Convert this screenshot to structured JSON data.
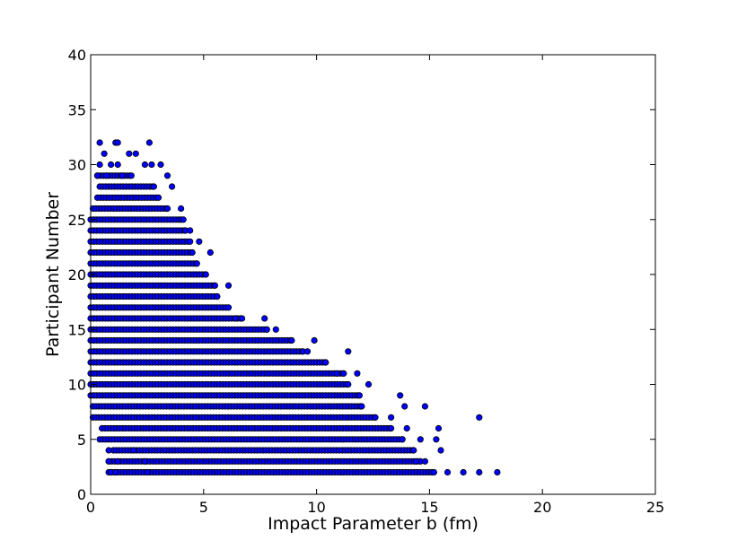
{
  "chart_data": {
    "type": "scatter",
    "title": "",
    "xlabel": "Impact Parameter b (fm)",
    "ylabel": "Participant Number",
    "xlim": [
      0,
      25
    ],
    "ylim": [
      0,
      40
    ],
    "xticks": [
      "0",
      "5",
      "10",
      "15",
      "20",
      "25"
    ],
    "yticks": [
      "0",
      "5",
      "10",
      "15",
      "20",
      "25",
      "30",
      "35",
      "40"
    ],
    "grid": false,
    "marker_color": "#0000ff",
    "marker_edge_color": "#000000",
    "series": [
      {
        "runs": [
          [
            2,
            0.8,
            15.2
          ],
          [
            3,
            0.8,
            14.6
          ],
          [
            4,
            1.0,
            14.3
          ],
          [
            5,
            0.4,
            13.8
          ],
          [
            6,
            0.5,
            13.3
          ],
          [
            7,
            0.1,
            12.6
          ],
          [
            8,
            0.1,
            12.0
          ],
          [
            9,
            0.0,
            11.9
          ],
          [
            10,
            0.0,
            11.4
          ],
          [
            11,
            0.0,
            11.2
          ],
          [
            12,
            0.0,
            10.4
          ],
          [
            13,
            0.0,
            9.4
          ],
          [
            14,
            0.0,
            8.9
          ],
          [
            15,
            0.0,
            7.8
          ],
          [
            16,
            0.0,
            6.7
          ],
          [
            17,
            0.0,
            6.1
          ],
          [
            18,
            0.0,
            5.6
          ],
          [
            19,
            0.0,
            5.5
          ],
          [
            20,
            0.0,
            5.1
          ],
          [
            21,
            0.0,
            4.7
          ],
          [
            22,
            0.0,
            4.5
          ],
          [
            23,
            0.0,
            4.4
          ],
          [
            24,
            0.0,
            4.2
          ],
          [
            25,
            0.0,
            4.0
          ],
          [
            26,
            0.1,
            3.4
          ],
          [
            27,
            0.3,
            3.0
          ],
          [
            28,
            0.4,
            2.8
          ],
          [
            29,
            0.3,
            1.8
          ]
        ],
        "points": [
          [
            0.4,
            32
          ],
          [
            1.1,
            32
          ],
          [
            1.2,
            32
          ],
          [
            2.6,
            32
          ],
          [
            0.6,
            31
          ],
          [
            1.7,
            31
          ],
          [
            2.0,
            31
          ],
          [
            0.4,
            30
          ],
          [
            0.9,
            30
          ],
          [
            1.2,
            30
          ],
          [
            2.4,
            30
          ],
          [
            2.7,
            30
          ],
          [
            3.1,
            30
          ],
          [
            0.3,
            29
          ],
          [
            0.7,
            29
          ],
          [
            1.4,
            29
          ],
          [
            3.4,
            29
          ],
          [
            3.6,
            28
          ],
          [
            4.0,
            26
          ],
          [
            4.1,
            25
          ],
          [
            4.4,
            24
          ],
          [
            4.8,
            23
          ],
          [
            5.3,
            22
          ],
          [
            6.1,
            19
          ],
          [
            6.4,
            16
          ],
          [
            7.7,
            16
          ],
          [
            8.2,
            15
          ],
          [
            9.9,
            14
          ],
          [
            11.4,
            13
          ],
          [
            9.6,
            13
          ],
          [
            10.9,
            11
          ],
          [
            11.8,
            11
          ],
          [
            12.3,
            10
          ],
          [
            13.7,
            9
          ],
          [
            13.9,
            8
          ],
          [
            14.8,
            8
          ],
          [
            13.3,
            7
          ],
          [
            17.2,
            7
          ],
          [
            14.0,
            6
          ],
          [
            15.4,
            6
          ],
          [
            14.6,
            5
          ],
          [
            15.3,
            5
          ],
          [
            15.5,
            4
          ],
          [
            14.4,
            3
          ],
          [
            14.8,
            3
          ],
          [
            15.8,
            2
          ],
          [
            16.5,
            2
          ],
          [
            17.2,
            2
          ],
          [
            18.0,
            2
          ],
          [
            2.5,
            2
          ],
          [
            1.2,
            3
          ],
          [
            0.8,
            4
          ],
          [
            0.8,
            3
          ],
          [
            0.9,
            2
          ],
          [
            1.1,
            2
          ],
          [
            2.4,
            3
          ],
          [
            1.9,
            4
          ]
        ]
      }
    ]
  }
}
